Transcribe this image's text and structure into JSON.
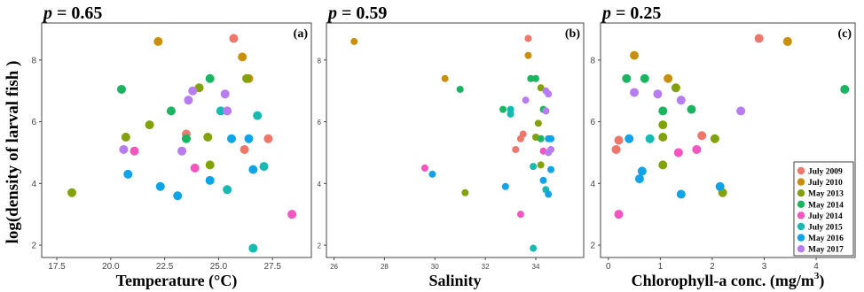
{
  "figure": {
    "shared_ylabel": "log(density of larval fish )"
  },
  "chart_data": [
    {
      "id": "a",
      "type": "scatter",
      "panel_label": "(a)",
      "p_label": "p",
      "p_value": "= 0.65",
      "xlabel": "Temperature (°C)",
      "xlim": [
        16.8,
        29.3
      ],
      "ylim": [
        1.6,
        9.2
      ],
      "xticks": [
        "17.5",
        "20.0",
        "22.5",
        "25.0",
        "27.5"
      ],
      "xtick_values": [
        17.5,
        20.0,
        22.5,
        25.0,
        27.5
      ],
      "yticks": [
        "2",
        "4",
        "6",
        "8"
      ],
      "ytick_values": [
        2,
        4,
        6,
        8
      ],
      "points": [
        {
          "x": 25.7,
          "y": 8.7,
          "s": "July 2009"
        },
        {
          "x": 23.5,
          "y": 5.6,
          "s": "July 2009"
        },
        {
          "x": 26.2,
          "y": 5.1,
          "s": "July 2009"
        },
        {
          "x": 27.3,
          "y": 5.45,
          "s": "July 2009"
        },
        {
          "x": 22.2,
          "y": 8.6,
          "s": "July 2010"
        },
        {
          "x": 26.1,
          "y": 8.1,
          "s": "July 2010"
        },
        {
          "x": 26.4,
          "y": 7.4,
          "s": "July 2010"
        },
        {
          "x": 18.2,
          "y": 3.7,
          "s": "May 2013"
        },
        {
          "x": 20.7,
          "y": 5.5,
          "s": "May 2013"
        },
        {
          "x": 21.8,
          "y": 5.9,
          "s": "May 2013"
        },
        {
          "x": 24.1,
          "y": 7.1,
          "s": "May 2013"
        },
        {
          "x": 24.5,
          "y": 5.5,
          "s": "May 2013"
        },
        {
          "x": 24.6,
          "y": 4.6,
          "s": "May 2013"
        },
        {
          "x": 26.3,
          "y": 7.4,
          "s": "May 2013"
        },
        {
          "x": 20.5,
          "y": 7.05,
          "s": "May 2014"
        },
        {
          "x": 22.8,
          "y": 6.35,
          "s": "May 2014"
        },
        {
          "x": 23.5,
          "y": 5.45,
          "s": "May 2014"
        },
        {
          "x": 24.6,
          "y": 7.4,
          "s": "May 2014"
        },
        {
          "x": 21.1,
          "y": 5.05,
          "s": "July 2014"
        },
        {
          "x": 23.9,
          "y": 4.5,
          "s": "July 2014"
        },
        {
          "x": 28.4,
          "y": 3.0,
          "s": "July 2014"
        },
        {
          "x": 25.1,
          "y": 6.35,
          "s": "July 2015"
        },
        {
          "x": 26.8,
          "y": 6.2,
          "s": "July 2015"
        },
        {
          "x": 27.1,
          "y": 4.55,
          "s": "July 2015"
        },
        {
          "x": 25.4,
          "y": 3.8,
          "s": "July 2015"
        },
        {
          "x": 26.6,
          "y": 1.9,
          "s": "July 2015"
        },
        {
          "x": 20.8,
          "y": 4.3,
          "s": "May 2016"
        },
        {
          "x": 22.3,
          "y": 3.9,
          "s": "May 2016"
        },
        {
          "x": 23.1,
          "y": 3.6,
          "s": "May 2016"
        },
        {
          "x": 24.6,
          "y": 4.1,
          "s": "May 2016"
        },
        {
          "x": 25.6,
          "y": 5.45,
          "s": "May 2016"
        },
        {
          "x": 26.4,
          "y": 5.45,
          "s": "May 2016"
        },
        {
          "x": 26.6,
          "y": 4.45,
          "s": "May 2016"
        },
        {
          "x": 20.6,
          "y": 5.1,
          "s": "May 2017"
        },
        {
          "x": 23.3,
          "y": 5.05,
          "s": "May 2017"
        },
        {
          "x": 23.6,
          "y": 6.7,
          "s": "May 2017"
        },
        {
          "x": 23.8,
          "y": 7.0,
          "s": "May 2017"
        },
        {
          "x": 25.3,
          "y": 6.9,
          "s": "May 2017"
        },
        {
          "x": 25.4,
          "y": 6.35,
          "s": "May 2017"
        }
      ]
    },
    {
      "id": "b",
      "type": "scatter",
      "panel_label": "(b)",
      "p_label": "p",
      "p_value": "= 0.59",
      "xlabel": "Salinity",
      "xlim": [
        25.7,
        35.9
      ],
      "ylim": [
        1.6,
        9.2
      ],
      "xticks": [
        "26",
        "28",
        "30",
        "32",
        "34"
      ],
      "xtick_values": [
        26,
        28,
        30,
        32,
        34
      ],
      "yticks": [
        "2",
        "4",
        "6",
        "8"
      ],
      "ytick_values": [
        2,
        4,
        6,
        8
      ],
      "points": [
        {
          "x": 33.7,
          "y": 8.7,
          "s": "July 2009"
        },
        {
          "x": 33.5,
          "y": 5.6,
          "s": "July 2009"
        },
        {
          "x": 33.4,
          "y": 5.45,
          "s": "July 2009"
        },
        {
          "x": 33.2,
          "y": 5.1,
          "s": "July 2009"
        },
        {
          "x": 26.8,
          "y": 8.6,
          "s": "July 2010"
        },
        {
          "x": 33.7,
          "y": 8.15,
          "s": "July 2010"
        },
        {
          "x": 30.4,
          "y": 7.4,
          "s": "July 2010"
        },
        {
          "x": 31.2,
          "y": 3.7,
          "s": "May 2013"
        },
        {
          "x": 34.2,
          "y": 7.1,
          "s": "May 2013"
        },
        {
          "x": 34.1,
          "y": 5.95,
          "s": "May 2013"
        },
        {
          "x": 34.0,
          "y": 5.5,
          "s": "May 2013"
        },
        {
          "x": 34.2,
          "y": 4.6,
          "s": "May 2013"
        },
        {
          "x": 31.0,
          "y": 7.05,
          "s": "May 2014"
        },
        {
          "x": 33.8,
          "y": 7.4,
          "s": "May 2014"
        },
        {
          "x": 34.0,
          "y": 7.4,
          "s": "May 2014"
        },
        {
          "x": 32.7,
          "y": 6.4,
          "s": "May 2014"
        },
        {
          "x": 34.3,
          "y": 6.4,
          "s": "May 2014"
        },
        {
          "x": 34.2,
          "y": 5.45,
          "s": "May 2014"
        },
        {
          "x": 29.6,
          "y": 4.5,
          "s": "July 2014"
        },
        {
          "x": 33.4,
          "y": 3.0,
          "s": "July 2014"
        },
        {
          "x": 34.3,
          "y": 5.05,
          "s": "July 2014"
        },
        {
          "x": 33.0,
          "y": 6.4,
          "s": "July 2015"
        },
        {
          "x": 33.0,
          "y": 6.25,
          "s": "July 2015"
        },
        {
          "x": 33.9,
          "y": 4.55,
          "s": "July 2015"
        },
        {
          "x": 34.4,
          "y": 3.8,
          "s": "July 2015"
        },
        {
          "x": 33.9,
          "y": 1.9,
          "s": "July 2015"
        },
        {
          "x": 29.9,
          "y": 4.3,
          "s": "May 2016"
        },
        {
          "x": 32.8,
          "y": 3.9,
          "s": "May 2016"
        },
        {
          "x": 34.5,
          "y": 3.65,
          "s": "May 2016"
        },
        {
          "x": 34.3,
          "y": 4.1,
          "s": "May 2016"
        },
        {
          "x": 34.5,
          "y": 5.45,
          "s": "May 2016"
        },
        {
          "x": 34.6,
          "y": 5.45,
          "s": "May 2016"
        },
        {
          "x": 34.6,
          "y": 4.45,
          "s": "May 2016"
        },
        {
          "x": 33.6,
          "y": 6.7,
          "s": "May 2017"
        },
        {
          "x": 34.4,
          "y": 7.0,
          "s": "May 2017"
        },
        {
          "x": 34.4,
          "y": 6.35,
          "s": "May 2017"
        },
        {
          "x": 34.5,
          "y": 6.9,
          "s": "May 2017"
        },
        {
          "x": 34.6,
          "y": 5.1,
          "s": "May 2017"
        },
        {
          "x": 34.5,
          "y": 5.0,
          "s": "May 2017"
        }
      ]
    },
    {
      "id": "c",
      "type": "scatter",
      "panel_label": "(c)",
      "p_label": "p",
      "p_value": "= 0.25",
      "xlabel": "Chlorophyll-a conc. (mg/m",
      "xlabel_sup": "3",
      "xlabel_end": ")",
      "xlim": [
        -0.15,
        4.75
      ],
      "ylim": [
        1.6,
        9.2
      ],
      "xticks": [
        "0",
        "1",
        "2",
        "3",
        "4"
      ],
      "xtick_values": [
        0,
        1,
        2,
        3,
        4
      ],
      "yticks": [
        "2",
        "4",
        "6",
        "8"
      ],
      "ytick_values": [
        2,
        4,
        6,
        8
      ],
      "points": [
        {
          "x": 2.9,
          "y": 8.7,
          "s": "July 2009"
        },
        {
          "x": 0.15,
          "y": 5.1,
          "s": "July 2009"
        },
        {
          "x": 0.2,
          "y": 5.4,
          "s": "July 2009"
        },
        {
          "x": 1.8,
          "y": 5.55,
          "s": "July 2009"
        },
        {
          "x": 3.45,
          "y": 8.6,
          "s": "July 2010"
        },
        {
          "x": 0.5,
          "y": 8.15,
          "s": "July 2010"
        },
        {
          "x": 1.15,
          "y": 7.4,
          "s": "July 2010"
        },
        {
          "x": 1.3,
          "y": 7.1,
          "s": "May 2013"
        },
        {
          "x": 1.05,
          "y": 5.9,
          "s": "May 2013"
        },
        {
          "x": 1.05,
          "y": 5.5,
          "s": "May 2013"
        },
        {
          "x": 1.05,
          "y": 4.6,
          "s": "May 2013"
        },
        {
          "x": 2.05,
          "y": 5.45,
          "s": "May 2013"
        },
        {
          "x": 2.2,
          "y": 3.7,
          "s": "May 2013"
        },
        {
          "x": 0.35,
          "y": 7.4,
          "s": "May 2014"
        },
        {
          "x": 0.7,
          "y": 7.4,
          "s": "May 2014"
        },
        {
          "x": 1.05,
          "y": 6.35,
          "s": "May 2014"
        },
        {
          "x": 1.6,
          "y": 6.4,
          "s": "May 2014"
        },
        {
          "x": 4.55,
          "y": 7.05,
          "s": "May 2014"
        },
        {
          "x": 0.2,
          "y": 3.0,
          "s": "July 2014"
        },
        {
          "x": 1.35,
          "y": 5.0,
          "s": "July 2014"
        },
        {
          "x": 1.7,
          "y": 5.1,
          "s": "July 2014"
        },
        {
          "x": 0.8,
          "y": 5.45,
          "s": "July 2015"
        },
        {
          "x": 0.4,
          "y": 5.45,
          "s": "May 2016"
        },
        {
          "x": 0.6,
          "y": 4.15,
          "s": "May 2016"
        },
        {
          "x": 0.65,
          "y": 4.4,
          "s": "May 2016"
        },
        {
          "x": 1.4,
          "y": 3.65,
          "s": "May 2016"
        },
        {
          "x": 2.15,
          "y": 3.9,
          "s": "May 2016"
        },
        {
          "x": 0.5,
          "y": 6.95,
          "s": "May 2017"
        },
        {
          "x": 0.95,
          "y": 6.9,
          "s": "May 2017"
        },
        {
          "x": 1.4,
          "y": 6.7,
          "s": "May 2017"
        },
        {
          "x": 2.55,
          "y": 6.35,
          "s": "May 2017"
        }
      ],
      "legend": {
        "placement": "bottom-right",
        "entries": [
          {
            "label": "July 2009",
            "color": "#f0766b"
          },
          {
            "label": "July 2010",
            "color": "#c8900a"
          },
          {
            "label": "May 2013",
            "color": "#82a20a"
          },
          {
            "label": "May 2014",
            "color": "#1bb461"
          },
          {
            "label": "July 2014",
            "color": "#f455bf"
          },
          {
            "label": "July 2015",
            "color": "#17b9b0"
          },
          {
            "label": "May 2016",
            "color": "#0fa4e8"
          },
          {
            "label": "May 2017",
            "color": "#b77cf2"
          }
        ]
      }
    }
  ],
  "series_colors": {
    "July 2009": "#f0766b",
    "July 2010": "#c8900a",
    "May 2013": "#82a20a",
    "May 2014": "#1bb461",
    "July 2014": "#f455bf",
    "July 2015": "#17b9b0",
    "May 2016": "#0fa4e8",
    "May 2017": "#b77cf2"
  }
}
